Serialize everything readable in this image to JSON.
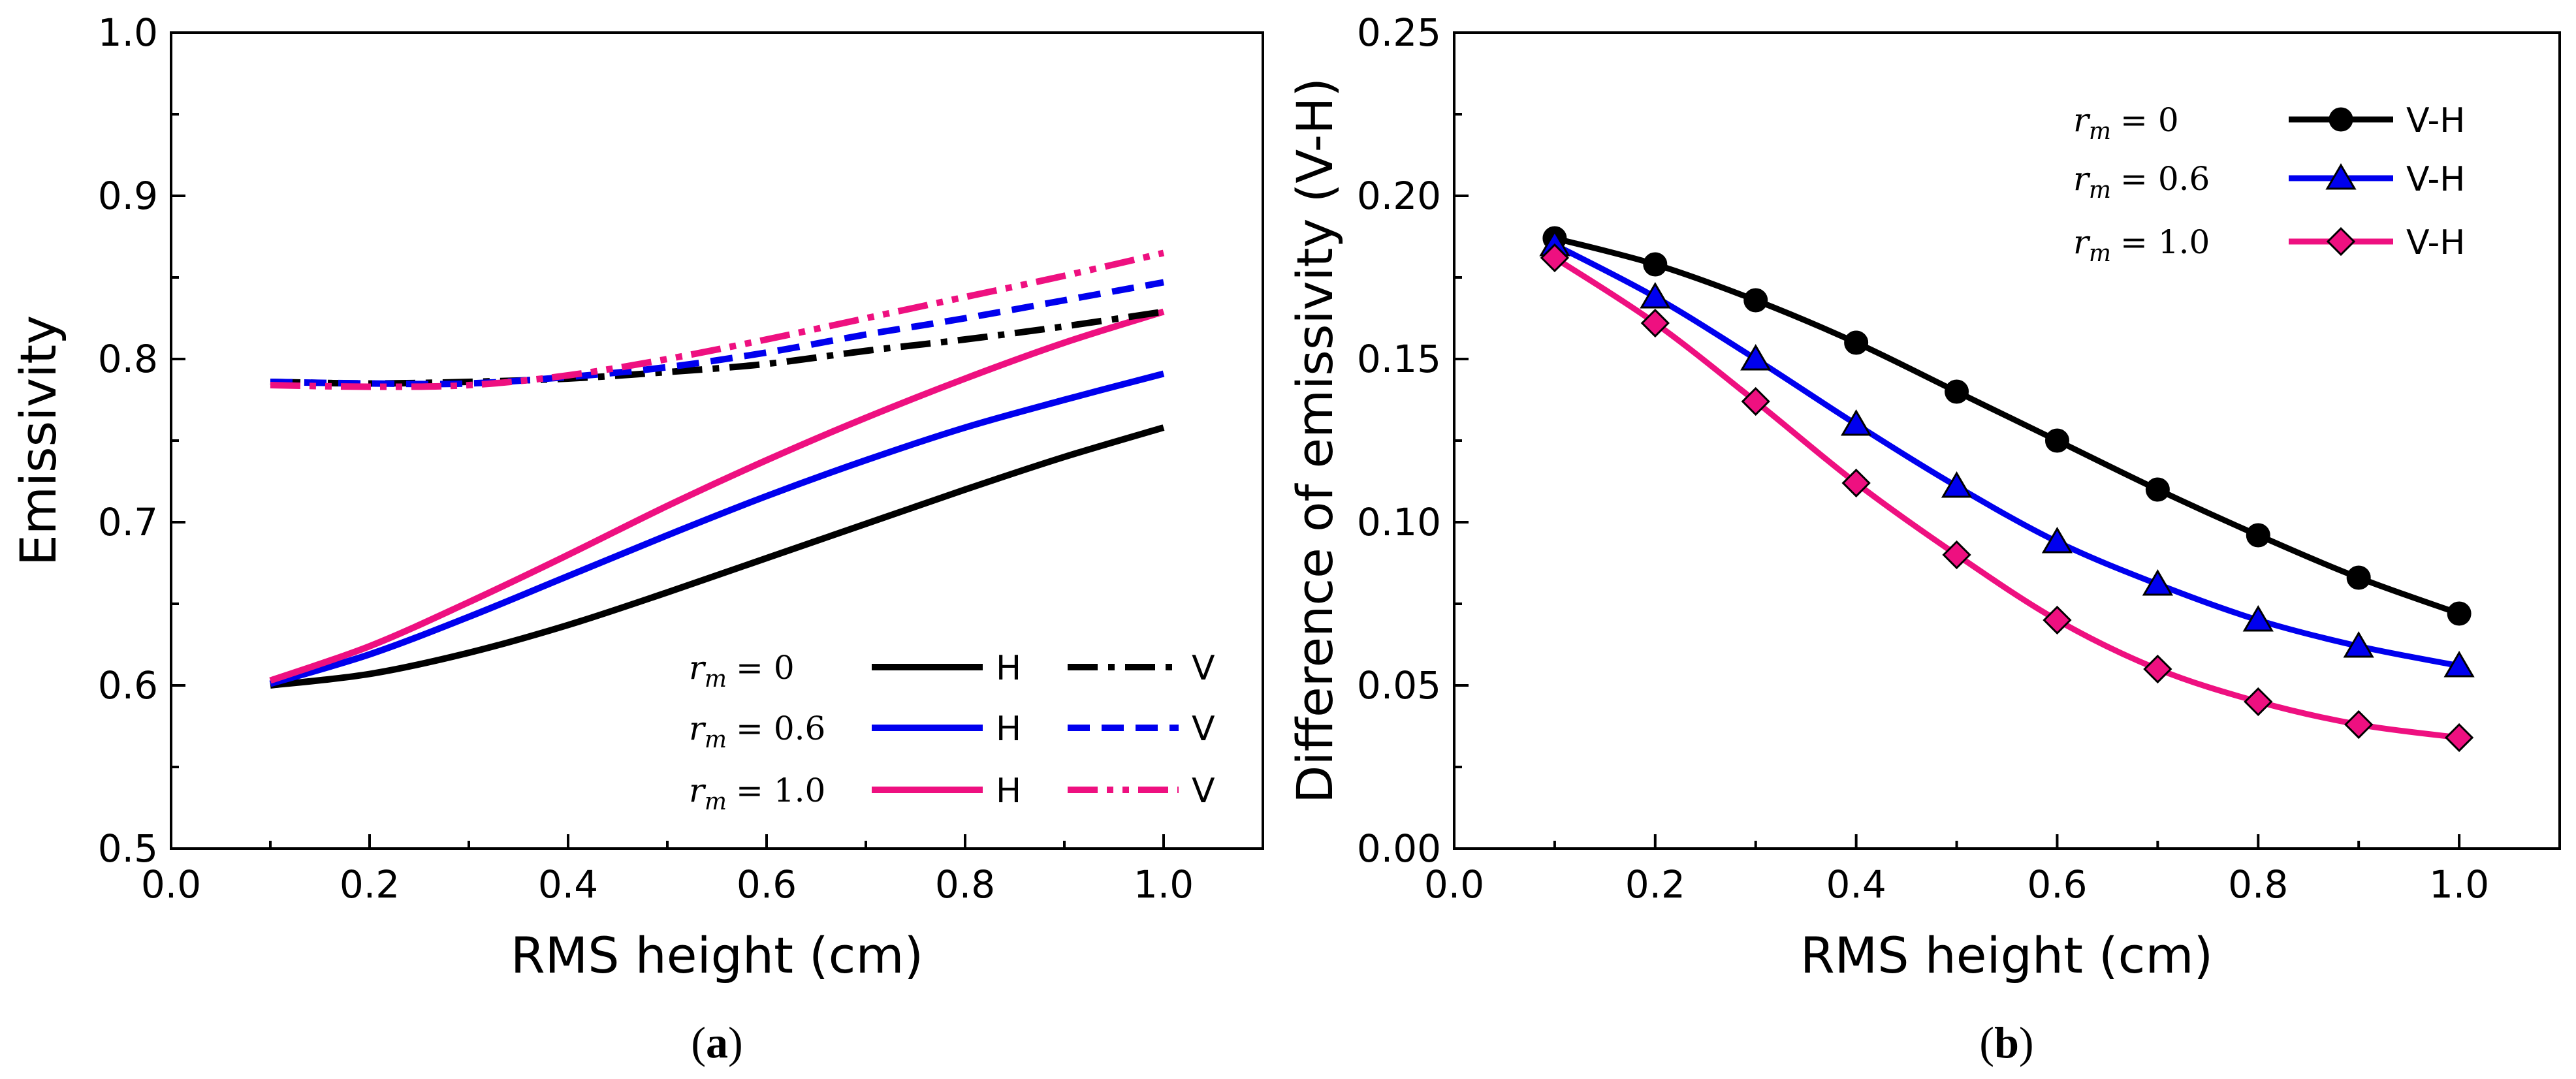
{
  "chart_data": [
    {
      "type": "line",
      "panel_label": "a",
      "xlabel": "RMS height (cm)",
      "ylabel": "Emissivity",
      "xlim": [
        0.0,
        1.1
      ],
      "ylim": [
        0.5,
        1.0
      ],
      "xticks": [
        "0.0",
        "0.2",
        "0.4",
        "0.6",
        "0.8",
        "1.0"
      ],
      "yticks": [
        "0.5",
        "0.6",
        "0.7",
        "0.8",
        "0.9",
        "1.0"
      ],
      "x": [
        0.1,
        0.2,
        0.3,
        0.4,
        0.5,
        0.6,
        0.7,
        0.8,
        0.9,
        1.0
      ],
      "series": [
        {
          "name": "H",
          "rm": "r_m = 0",
          "color": "#000000",
          "style": "solid",
          "values": [
            0.6,
            0.607,
            0.62,
            0.637,
            0.657,
            0.678,
            0.699,
            0.72,
            0.74,
            0.758
          ]
        },
        {
          "name": "H",
          "rm": "r_m = 0.6",
          "color": "#0000ee",
          "style": "solid",
          "values": [
            0.601,
            0.619,
            0.642,
            0.667,
            0.692,
            0.716,
            0.738,
            0.758,
            0.775,
            0.791
          ]
        },
        {
          "name": "H",
          "rm": "r_m = 1.0",
          "color": "#ee1080",
          "style": "solid",
          "values": [
            0.603,
            0.624,
            0.651,
            0.68,
            0.71,
            0.738,
            0.764,
            0.788,
            0.81,
            0.829
          ]
        },
        {
          "name": "V",
          "rm": "r_m = 0",
          "color": "#000000",
          "style": "dashdot",
          "values": [
            0.786,
            0.785,
            0.786,
            0.788,
            0.792,
            0.797,
            0.805,
            0.812,
            0.82,
            0.829
          ]
        },
        {
          "name": "V",
          "rm": "r_m = 0.6",
          "color": "#0000ee",
          "style": "dashed",
          "values": [
            0.786,
            0.785,
            0.785,
            0.789,
            0.795,
            0.804,
            0.815,
            0.825,
            0.836,
            0.847
          ]
        },
        {
          "name": "V",
          "rm": "r_m = 1.0",
          "color": "#ee1080",
          "style": "dashdotdot",
          "values": [
            0.784,
            0.783,
            0.784,
            0.79,
            0.8,
            0.812,
            0.825,
            0.838,
            0.851,
            0.865
          ]
        }
      ],
      "legend": [
        {
          "rm": "r",
          "sub": "m",
          "val": "= 0",
          "h_label": "H",
          "v_label": "V"
        },
        {
          "rm": "r",
          "sub": "m",
          "val": "= 0.6",
          "h_label": "H",
          "v_label": "V"
        },
        {
          "rm": "r",
          "sub": "m",
          "val": "= 1.0",
          "h_label": "H",
          "v_label": "V"
        }
      ],
      "legend_position": "bottom-right"
    },
    {
      "type": "line",
      "panel_label": "b",
      "xlabel": "RMS height (cm)",
      "ylabel": "Difference of emissivity (V-H)",
      "xlim": [
        0.0,
        1.1
      ],
      "ylim": [
        0.0,
        0.25
      ],
      "xticks": [
        "0.0",
        "0.2",
        "0.4",
        "0.6",
        "0.8",
        "1.0"
      ],
      "yticks": [
        "0.00",
        "0.05",
        "0.10",
        "0.15",
        "0.20",
        "0.25"
      ],
      "x": [
        0.1,
        0.2,
        0.3,
        0.4,
        0.5,
        0.6,
        0.7,
        0.8,
        0.9,
        1.0
      ],
      "series": [
        {
          "name": "V-H",
          "rm": "r_m = 0",
          "color": "#000000",
          "marker": "circle",
          "values": [
            0.187,
            0.179,
            0.168,
            0.155,
            0.14,
            0.125,
            0.11,
            0.096,
            0.083,
            0.072
          ]
        },
        {
          "name": "V-H",
          "rm": "r_m = 0.6",
          "color": "#0000ee",
          "marker": "triangle",
          "values": [
            0.185,
            0.169,
            0.15,
            0.13,
            0.111,
            0.094,
            0.081,
            0.07,
            0.062,
            0.056
          ]
        },
        {
          "name": "V-H",
          "rm": "r_m = 1.0",
          "color": "#ee1080",
          "marker": "diamond",
          "values": [
            0.181,
            0.161,
            0.137,
            0.112,
            0.09,
            0.07,
            0.055,
            0.045,
            0.038,
            0.034
          ]
        }
      ],
      "legend": [
        {
          "rm": "r",
          "sub": "m",
          "val": "= 0",
          "label": "V-H"
        },
        {
          "rm": "r",
          "sub": "m",
          "val": "= 0.6",
          "label": "V-H"
        },
        {
          "rm": "r",
          "sub": "m",
          "val": "= 1.0",
          "label": "V-H"
        }
      ],
      "legend_position": "top-right"
    }
  ],
  "captions": {
    "a": {
      "open": "(",
      "letter": "a",
      "close": ")"
    },
    "b": {
      "open": "(",
      "letter": "b",
      "close": ")"
    }
  }
}
